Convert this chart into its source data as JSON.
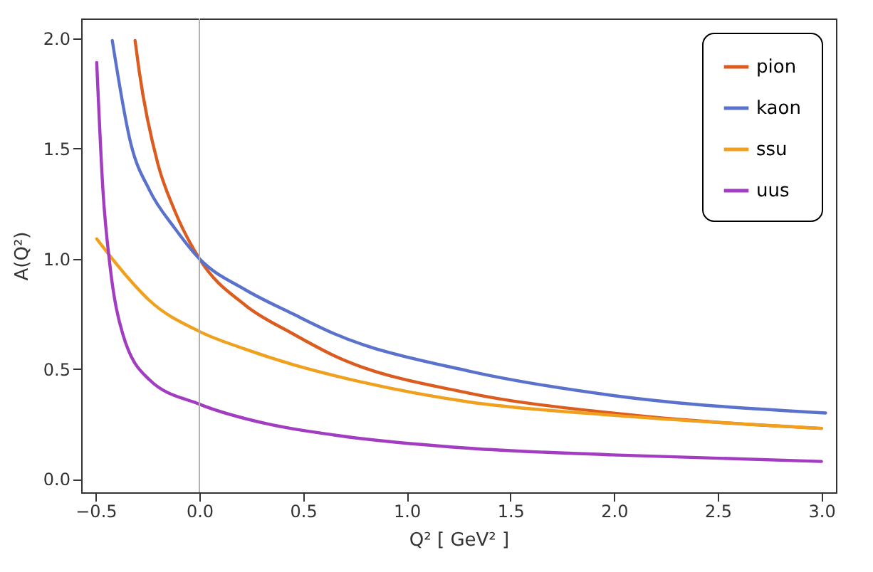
{
  "chart_data": {
    "type": "line",
    "xlabel": "Q² [ GeV² ]",
    "ylabel": "A(Q²)",
    "xlim": [
      -0.57,
      3.07
    ],
    "ylim": [
      -0.06,
      2.09
    ],
    "xticks": [
      {
        "value": -0.5,
        "label": "−0.5"
      },
      {
        "value": 0,
        "label": "0.0"
      },
      {
        "value": 0.5,
        "label": "0.5"
      },
      {
        "value": 1,
        "label": "1.0"
      },
      {
        "value": 1.5,
        "label": "1.5"
      },
      {
        "value": 2,
        "label": "2.0"
      },
      {
        "value": 2.5,
        "label": "2.5"
      },
      {
        "value": 3,
        "label": "3.0"
      }
    ],
    "yticks": [
      {
        "value": 0,
        "label": "0.0"
      },
      {
        "value": 0.5,
        "label": "0.5"
      },
      {
        "value": 1,
        "label": "1.0"
      },
      {
        "value": 1.5,
        "label": "1.5"
      },
      {
        "value": 2,
        "label": "2.0"
      }
    ],
    "legend": "top right",
    "grid": false,
    "ref_lines": [
      {
        "axis": "x",
        "value": 0,
        "color": "#b0b0b0"
      }
    ],
    "series": [
      {
        "name": "pion",
        "color": "#dc5b1e",
        "x": [
          -0.31,
          -0.29,
          -0.2,
          -0.12,
          0,
          0.22,
          0.45,
          0.65,
          1.3,
          1.99,
          3.0
        ],
        "values": [
          1.99,
          1.85,
          1.43,
          1.22,
          1.0,
          0.79,
          0.66,
          0.56,
          0.39,
          0.3,
          0.23
        ]
      },
      {
        "name": "kaon",
        "color": "#5a72cc",
        "x": [
          -0.42,
          -0.33,
          -0.24,
          -0.12,
          0,
          0.22,
          0.45,
          0.65,
          1.3,
          1.99,
          3.02
        ],
        "values": [
          1.99,
          1.52,
          1.31,
          1.14,
          1.0,
          0.86,
          0.75,
          0.66,
          0.49,
          0.38,
          0.3
        ]
      },
      {
        "name": "ssu",
        "color": "#f0a01c",
        "x": [
          -0.495,
          -0.35,
          -0.24,
          0,
          0.22,
          0.45,
          0.65,
          1.3,
          1.99,
          3.0
        ],
        "values": [
          1.09,
          0.92,
          0.81,
          0.67,
          0.59,
          0.52,
          0.47,
          0.35,
          0.29,
          0.23
        ]
      },
      {
        "name": "uus",
        "color": "#a23cc0",
        "x": [
          -0.495,
          -0.465,
          -0.43,
          -0.37,
          -0.24,
          0,
          0.33,
          0.65,
          1.3,
          1.99,
          3.0
        ],
        "values": [
          1.89,
          1.31,
          0.96,
          0.66,
          0.45,
          0.34,
          0.25,
          0.2,
          0.14,
          0.11,
          0.08
        ]
      }
    ]
  }
}
